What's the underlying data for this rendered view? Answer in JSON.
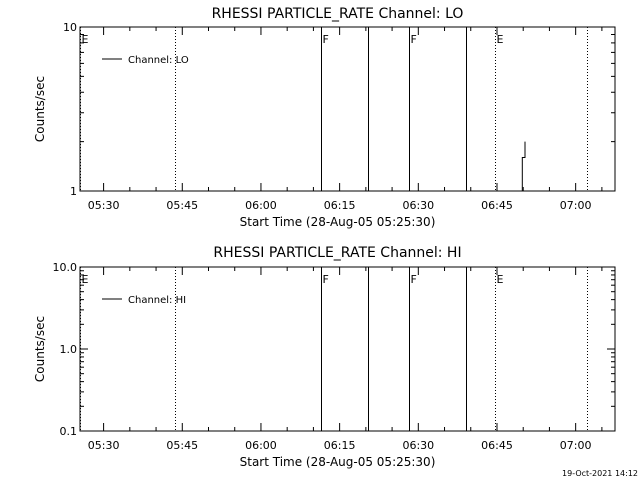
{
  "footer_timestamp": "19-Oct-2021 14:12",
  "chart_data": [
    {
      "type": "line",
      "title": "RHESSI PARTICLE_RATE Channel: LO",
      "xlabel": "Start Time (28-Aug-05 05:25:30)",
      "ylabel": "Counts/sec",
      "y_scale": "log",
      "ylim": [
        1,
        10
      ],
      "y_ticks": [
        {
          "value": 1,
          "label": "1"
        },
        {
          "value": 10,
          "label": "10"
        }
      ],
      "xlim": [
        "05:25:30",
        "07:07:30"
      ],
      "x_ticks": [
        "05:30",
        "05:45",
        "06:00",
        "06:15",
        "06:30",
        "06:45",
        "07:00"
      ],
      "legend": {
        "label": "Channel: LO",
        "position": "top-left"
      },
      "series": [
        {
          "name": "Channel: LO",
          "x": [
            "06:49:50",
            "06:49:50",
            "06:50:20",
            "06:50:20"
          ],
          "y": [
            1.0,
            1.6,
            1.6,
            2.0
          ]
        }
      ],
      "event_lines": [
        {
          "time": "05:25:30",
          "style": "dotted",
          "label": "E"
        },
        {
          "time": "05:43:40",
          "style": "dotted",
          "label": ""
        },
        {
          "time": "06:11:30",
          "style": "solid",
          "label": "F"
        },
        {
          "time": "06:20:30",
          "style": "solid",
          "label": ""
        },
        {
          "time": "06:28:10",
          "style": "solid",
          "label": "F"
        },
        {
          "time": "06:39:10",
          "style": "solid",
          "label": ""
        },
        {
          "time": "06:44:40",
          "style": "dotted",
          "label": "E"
        },
        {
          "time": "07:02:10",
          "style": "dotted",
          "label": ""
        }
      ]
    },
    {
      "type": "line",
      "title": "RHESSI PARTICLE_RATE Channel: HI",
      "xlabel": "Start Time (28-Aug-05 05:25:30)",
      "ylabel": "Counts/sec",
      "y_scale": "log",
      "ylim": [
        0.1,
        10
      ],
      "y_ticks": [
        {
          "value": 0.1,
          "label": "0.1"
        },
        {
          "value": 1,
          "label": "1.0"
        },
        {
          "value": 10,
          "label": "10.0"
        }
      ],
      "xlim": [
        "05:25:30",
        "07:07:30"
      ],
      "x_ticks": [
        "05:30",
        "05:45",
        "06:00",
        "06:15",
        "06:30",
        "06:45",
        "07:00"
      ],
      "legend": {
        "label": "Channel: HI",
        "position": "top-left"
      },
      "series": [
        {
          "name": "Channel: HI",
          "x": [],
          "y": []
        }
      ],
      "event_lines": [
        {
          "time": "05:25:30",
          "style": "dotted",
          "label": "E"
        },
        {
          "time": "05:43:40",
          "style": "dotted",
          "label": ""
        },
        {
          "time": "06:11:30",
          "style": "solid",
          "label": "F"
        },
        {
          "time": "06:20:30",
          "style": "solid",
          "label": ""
        },
        {
          "time": "06:28:10",
          "style": "solid",
          "label": "F"
        },
        {
          "time": "06:39:10",
          "style": "solid",
          "label": ""
        },
        {
          "time": "06:44:40",
          "style": "dotted",
          "label": "E"
        },
        {
          "time": "07:02:10",
          "style": "dotted",
          "label": ""
        }
      ]
    }
  ]
}
